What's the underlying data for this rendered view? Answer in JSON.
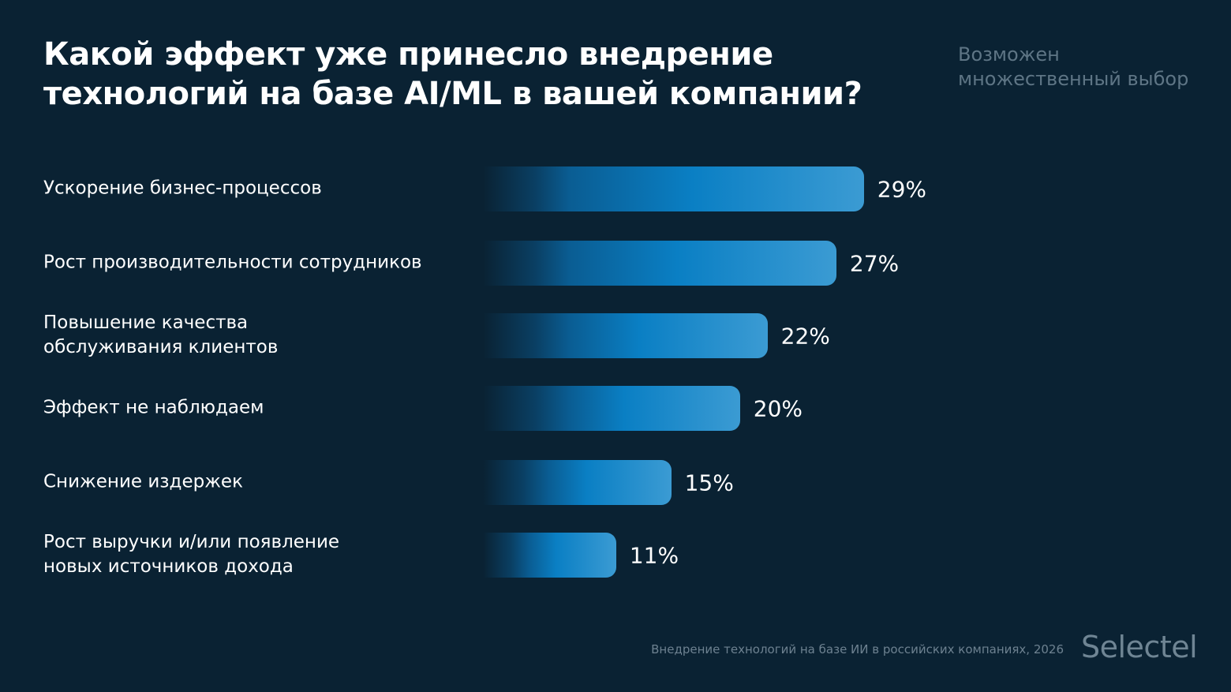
{
  "chart_data": {
    "type": "bar",
    "orientation": "horizontal",
    "title": "Какой эффект уже принесло внедрение технологий на базе AI/ML в вашей компании?",
    "subtitle": "Возможен множественный выбор",
    "categories": [
      "Ускорение бизнес-процессов",
      "Рост производительности сотрудников",
      "Повышение качества обслуживания клиентов",
      "Эффект не наблюдаем",
      "Снижение издержек",
      "Рост выручки и/или появление новых источников дохода"
    ],
    "values": [
      29,
      27,
      22,
      20,
      15,
      11
    ],
    "value_labels": [
      "29%",
      "27%",
      "22%",
      "20%",
      "15%",
      "11%"
    ],
    "unit": "%",
    "grid": false,
    "bar_colors": {
      "fade": "#0a2233",
      "mid": "#0a7fc4",
      "end": "#3b9bd3"
    }
  },
  "footer": {
    "source": "Внедрение технологий на базе ИИ в российских компаниях, 2026",
    "logo": "Selectel"
  },
  "colors": {
    "background": "#0a2233",
    "muted_text": "#5e7585"
  }
}
